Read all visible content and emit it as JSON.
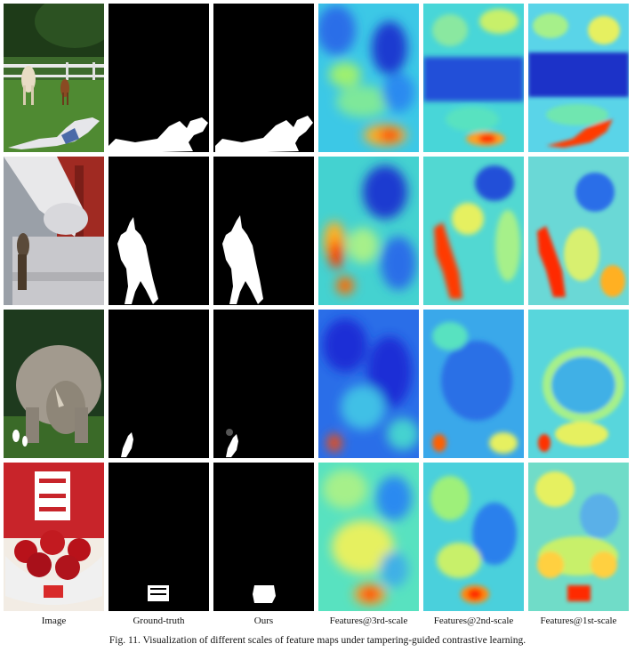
{
  "figure": {
    "caption": "Fig. 11.   Visualization of different scales of feature maps under tampering-guided contrastive learning.",
    "columns": [
      "Image",
      "Ground-truth",
      "Ours",
      "Features@3rd-scale",
      "Features@2nd-scale",
      "Features@1st-scale"
    ],
    "rows": [
      {
        "name": "horses-field"
      },
      {
        "name": "statue-crowd"
      },
      {
        "name": "rhino-birds"
      },
      {
        "name": "tomatoes-bowl"
      }
    ],
    "palette": {
      "mask_background": "#000000",
      "mask_foreground": "#ffffff",
      "heat_low": "#1a2fd6",
      "heat_mid": "#3fe0c8",
      "heat_high": "#ff2a00"
    }
  }
}
